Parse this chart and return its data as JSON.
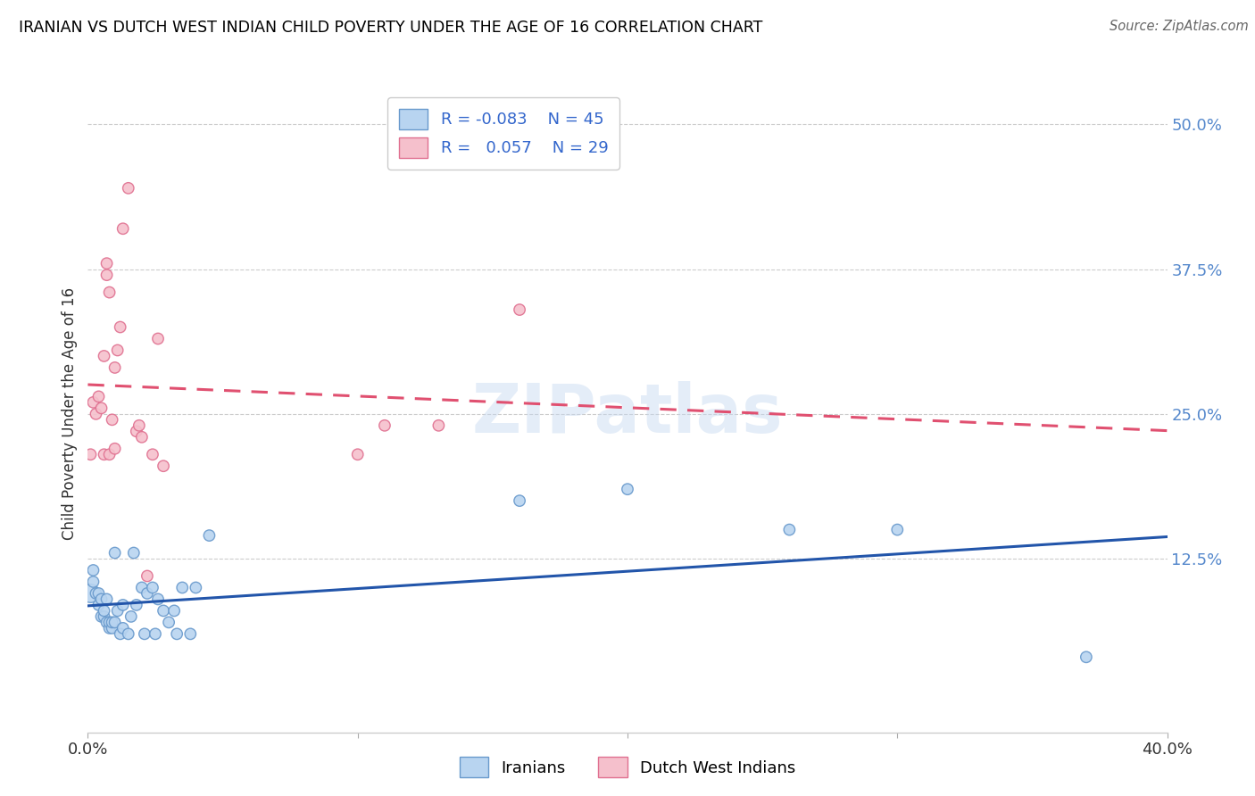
{
  "title": "IRANIAN VS DUTCH WEST INDIAN CHILD POVERTY UNDER THE AGE OF 16 CORRELATION CHART",
  "source": "Source: ZipAtlas.com",
  "ylabel": "Child Poverty Under the Age of 16",
  "xmin": 0.0,
  "xmax": 0.4,
  "ymin": -0.025,
  "ymax": 0.525,
  "watermark": "ZIPatlas",
  "iranians": {
    "R": -0.083,
    "N": 45,
    "color_face": "#b8d4f0",
    "color_edge": "#6899cc",
    "trend_color": "#2255aa",
    "trend_style": "solid",
    "x": [
      0.001,
      0.002,
      0.002,
      0.003,
      0.004,
      0.004,
      0.005,
      0.005,
      0.006,
      0.006,
      0.007,
      0.007,
      0.008,
      0.008,
      0.009,
      0.009,
      0.01,
      0.01,
      0.011,
      0.012,
      0.013,
      0.013,
      0.015,
      0.016,
      0.017,
      0.018,
      0.02,
      0.021,
      0.022,
      0.024,
      0.025,
      0.026,
      0.028,
      0.03,
      0.032,
      0.033,
      0.035,
      0.038,
      0.04,
      0.045,
      0.16,
      0.2,
      0.26,
      0.3,
      0.37
    ],
    "y": [
      0.095,
      0.105,
      0.115,
      0.095,
      0.095,
      0.085,
      0.075,
      0.09,
      0.075,
      0.08,
      0.07,
      0.09,
      0.065,
      0.07,
      0.065,
      0.07,
      0.07,
      0.13,
      0.08,
      0.06,
      0.065,
      0.085,
      0.06,
      0.075,
      0.13,
      0.085,
      0.1,
      0.06,
      0.095,
      0.1,
      0.06,
      0.09,
      0.08,
      0.07,
      0.08,
      0.06,
      0.1,
      0.06,
      0.1,
      0.145,
      0.175,
      0.185,
      0.15,
      0.15,
      0.04
    ],
    "sizes": [
      220,
      80,
      80,
      80,
      80,
      80,
      80,
      80,
      80,
      80,
      80,
      80,
      80,
      80,
      80,
      80,
      80,
      80,
      80,
      80,
      80,
      80,
      80,
      80,
      80,
      80,
      80,
      80,
      80,
      80,
      80,
      80,
      80,
      80,
      80,
      80,
      80,
      80,
      80,
      80,
      80,
      80,
      80,
      80,
      80
    ]
  },
  "dutch_west_indians": {
    "R": 0.057,
    "N": 29,
    "color_face": "#f5c0cc",
    "color_edge": "#e07090",
    "trend_color": "#e05070",
    "trend_style": "dashed",
    "x": [
      0.001,
      0.002,
      0.003,
      0.004,
      0.005,
      0.006,
      0.006,
      0.007,
      0.007,
      0.008,
      0.008,
      0.009,
      0.01,
      0.01,
      0.011,
      0.012,
      0.013,
      0.015,
      0.018,
      0.019,
      0.02,
      0.022,
      0.024,
      0.026,
      0.028,
      0.1,
      0.11,
      0.13,
      0.16
    ],
    "y": [
      0.215,
      0.26,
      0.25,
      0.265,
      0.255,
      0.3,
      0.215,
      0.37,
      0.38,
      0.355,
      0.215,
      0.245,
      0.22,
      0.29,
      0.305,
      0.325,
      0.41,
      0.445,
      0.235,
      0.24,
      0.23,
      0.11,
      0.215,
      0.315,
      0.205,
      0.215,
      0.24,
      0.24,
      0.34
    ],
    "sizes": [
      80,
      80,
      80,
      80,
      80,
      80,
      80,
      80,
      80,
      80,
      80,
      80,
      80,
      80,
      80,
      80,
      80,
      80,
      80,
      80,
      80,
      80,
      80,
      80,
      80,
      80,
      80,
      80,
      80
    ]
  }
}
